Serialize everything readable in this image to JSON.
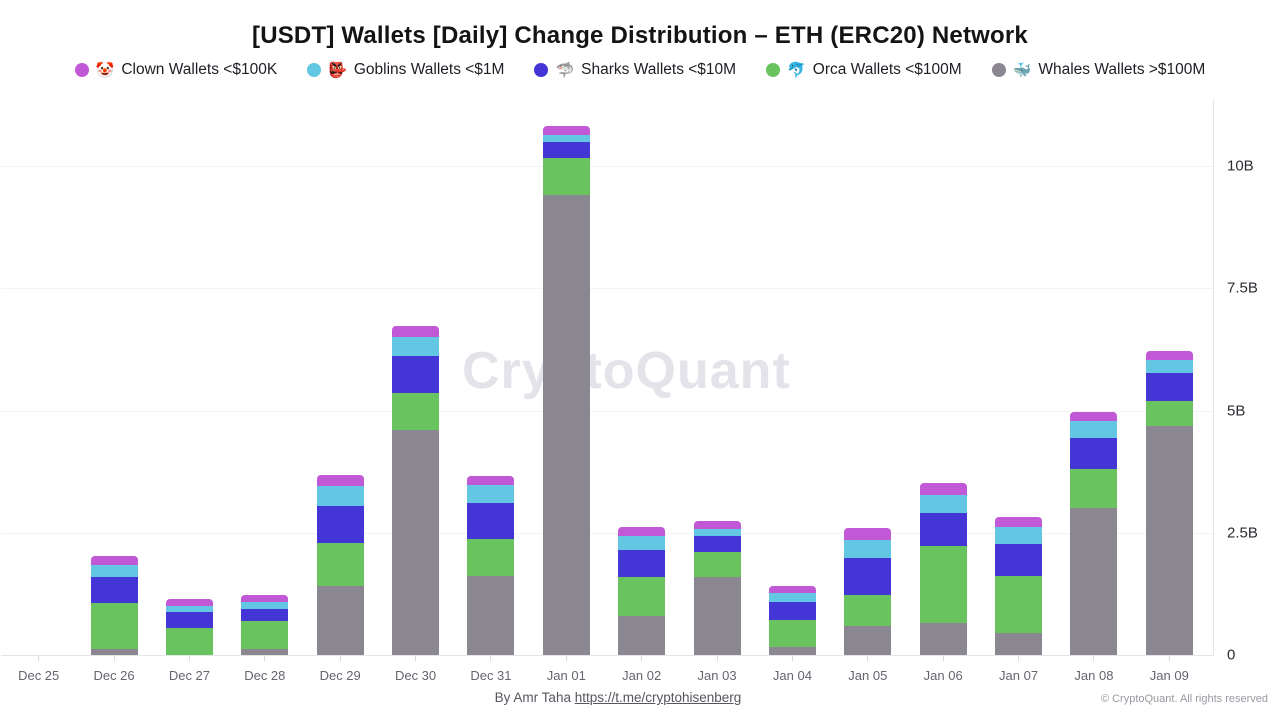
{
  "header": {
    "title": "[USDT] Wallets [Daily] Change Distribution – ETH (ERC20) Network"
  },
  "legend": [
    {
      "label": "Clown Wallets <$100K",
      "emoji": "🤡",
      "color": "#c158d6"
    },
    {
      "label": "Goblins Wallets <$1M",
      "emoji": "👺",
      "color": "#63c6e2"
    },
    {
      "label": "Sharks Wallets <$10M",
      "emoji": "🦈",
      "color": "#4435d6"
    },
    {
      "label": "Orca Wallets <$100M",
      "emoji": "🐬",
      "color": "#69c35f"
    },
    {
      "label": "Whales Wallets >$100M",
      "emoji": "🐳",
      "color": "#8b8791"
    }
  ],
  "watermark": "CryptoQuant",
  "footer": {
    "byline": "By Amr Taha",
    "link": "https://t.me/cryptohisenberg",
    "copyright": "© CryptoQuant. All rights reserved"
  },
  "chart_data": {
    "type": "bar",
    "stacked": true,
    "title": "[USDT] Wallets [Daily] Change Distribution – ETH (ERC20) Network",
    "unit": "billions of USDT (B)",
    "xlabel": "",
    "ylabel": "",
    "ylim": [
      0,
      11.55
    ],
    "grid": "faint horizontal lines at labeled ticks",
    "legend_position": "top",
    "y_ticks": [
      {
        "label": "0",
        "value": 0
      },
      {
        "label": "2.5B",
        "value": 2.5
      },
      {
        "label": "5B",
        "value": 5
      },
      {
        "label": "7.5B",
        "value": 7.5
      },
      {
        "label": "10B",
        "value": 10
      }
    ],
    "categories": [
      "Dec 25",
      "Dec 26",
      "Dec 27",
      "Dec 28",
      "Dec 29",
      "Dec 30",
      "Dec 31",
      "Jan 01",
      "Jan 02",
      "Jan 03",
      "Jan 04",
      "Jan 05",
      "Jan 06",
      "Jan 07",
      "Jan 08",
      "Jan 09"
    ],
    "stack_order_note": "series listed bottom-to-top in the stack; legend shows reverse order",
    "series": [
      {
        "key": "whales",
        "name": "Whales Wallets >$100M",
        "color": "#8b8791",
        "values": [
          0,
          0.13,
          0,
          0.12,
          1.42,
          4.61,
          1.61,
          9.4,
          0.79,
          1.6,
          0.16,
          0.6,
          0.65,
          0.46,
          3.01,
          4.69
        ]
      },
      {
        "key": "orca",
        "name": "Orca Wallets <$100M",
        "color": "#69c35f",
        "values": [
          0,
          0.94,
          0.56,
          0.58,
          0.87,
          0.75,
          0.77,
          0.77,
          0.8,
          0.51,
          0.56,
          0.63,
          1.58,
          1.16,
          0.8,
          0.51
        ]
      },
      {
        "key": "sharks",
        "name": "Sharks Wallets <$10M",
        "color": "#4435d6",
        "values": [
          0,
          0.52,
          0.31,
          0.24,
          0.76,
          0.75,
          0.73,
          0.31,
          0.56,
          0.32,
          0.36,
          0.75,
          0.67,
          0.65,
          0.63,
          0.57
        ]
      },
      {
        "key": "goblins",
        "name": "Goblins Wallets <$1M",
        "color": "#63c6e2",
        "values": [
          0,
          0.25,
          0.14,
          0.15,
          0.41,
          0.4,
          0.37,
          0.16,
          0.29,
          0.16,
          0.18,
          0.37,
          0.37,
          0.35,
          0.34,
          0.26
        ]
      },
      {
        "key": "clown",
        "name": "Clown Wallets <$100K",
        "color": "#c158d6",
        "values": [
          0,
          0.18,
          0.14,
          0.14,
          0.22,
          0.22,
          0.19,
          0.18,
          0.18,
          0.15,
          0.15,
          0.25,
          0.24,
          0.2,
          0.2,
          0.18
        ]
      }
    ]
  }
}
